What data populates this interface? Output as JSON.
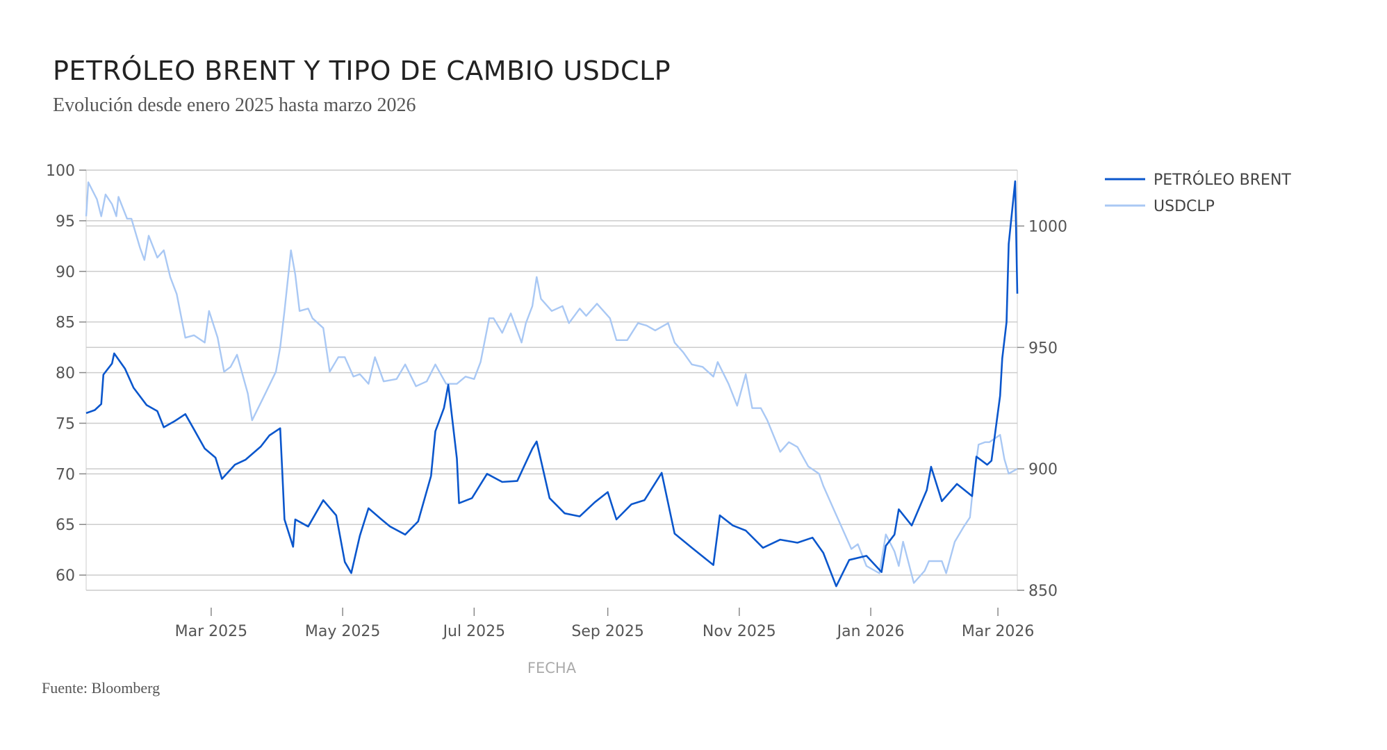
{
  "title": "PETRÓLEO BRENT Y TIPO DE CAMBIO USDCLP",
  "subtitle": "Evolución desde enero 2025 hasta marzo 2026",
  "source": "Fuente: Bloomberg",
  "colors": {
    "brent": "#0a56cc",
    "usdclp": "#a9c8f4",
    "grid": "#cccccc",
    "axis": "#888888"
  },
  "chart_data": {
    "type": "line",
    "xlabel": "FECHA",
    "x_ticks": [
      {
        "date": "2025-03-01",
        "label": "Mar 2025"
      },
      {
        "date": "2025-05-01",
        "label": "May 2025"
      },
      {
        "date": "2025-07-01",
        "label": "Jul 2025"
      },
      {
        "date": "2025-09-01",
        "label": "Sep 2025"
      },
      {
        "date": "2025-11-01",
        "label": "Nov 2025"
      },
      {
        "date": "2026-01-01",
        "label": "Jan 2026"
      },
      {
        "date": "2026-03-01",
        "label": "Mar 2026"
      }
    ],
    "xlim": [
      "2025-01-02",
      "2026-03-10"
    ],
    "y_left": {
      "ticks": [
        60,
        65,
        70,
        75,
        80,
        85,
        90,
        95,
        100
      ],
      "ylim": [
        58.5,
        100
      ]
    },
    "y_right": {
      "ticks": [
        850,
        900,
        950,
        1000
      ],
      "ylim": [
        850,
        1023
      ]
    },
    "grid": true,
    "legend_position": "right",
    "series": [
      {
        "name": "PETRÓLEO BRENT",
        "axis": "left",
        "points": [
          [
            "2025-01-02",
            76.0
          ],
          [
            "2025-01-06",
            76.3
          ],
          [
            "2025-01-09",
            76.9
          ],
          [
            "2025-01-10",
            79.8
          ],
          [
            "2025-01-14",
            80.9
          ],
          [
            "2025-01-15",
            81.9
          ],
          [
            "2025-01-20",
            80.4
          ],
          [
            "2025-01-24",
            78.5
          ],
          [
            "2025-01-30",
            76.8
          ],
          [
            "2025-02-04",
            76.2
          ],
          [
            "2025-02-07",
            74.6
          ],
          [
            "2025-02-12",
            75.2
          ],
          [
            "2025-02-17",
            75.9
          ],
          [
            "2025-02-21",
            74.4
          ],
          [
            "2025-02-26",
            72.5
          ],
          [
            "2025-03-03",
            71.6
          ],
          [
            "2025-03-06",
            69.5
          ],
          [
            "2025-03-12",
            70.9
          ],
          [
            "2025-03-17",
            71.4
          ],
          [
            "2025-03-24",
            72.7
          ],
          [
            "2025-03-28",
            73.8
          ],
          [
            "2025-04-02",
            74.5
          ],
          [
            "2025-04-03",
            70.1
          ],
          [
            "2025-04-04",
            65.5
          ],
          [
            "2025-04-08",
            62.8
          ],
          [
            "2025-04-09",
            65.5
          ],
          [
            "2025-04-15",
            64.8
          ],
          [
            "2025-04-22",
            67.4
          ],
          [
            "2025-04-28",
            65.9
          ],
          [
            "2025-05-02",
            61.3
          ],
          [
            "2025-05-05",
            60.2
          ],
          [
            "2025-05-09",
            63.9
          ],
          [
            "2025-05-13",
            66.6
          ],
          [
            "2025-05-19",
            65.5
          ],
          [
            "2025-05-23",
            64.8
          ],
          [
            "2025-05-30",
            64.0
          ],
          [
            "2025-06-05",
            65.3
          ],
          [
            "2025-06-11",
            69.8
          ],
          [
            "2025-06-13",
            74.2
          ],
          [
            "2025-06-17",
            76.5
          ],
          [
            "2025-06-19",
            78.8
          ],
          [
            "2025-06-23",
            71.5
          ],
          [
            "2025-06-24",
            67.1
          ],
          [
            "2025-06-30",
            67.6
          ],
          [
            "2025-07-07",
            70.0
          ],
          [
            "2025-07-14",
            69.2
          ],
          [
            "2025-07-21",
            69.3
          ],
          [
            "2025-07-28",
            72.5
          ],
          [
            "2025-07-30",
            73.2
          ],
          [
            "2025-08-05",
            67.6
          ],
          [
            "2025-08-12",
            66.1
          ],
          [
            "2025-08-19",
            65.8
          ],
          [
            "2025-08-26",
            67.2
          ],
          [
            "2025-09-01",
            68.2
          ],
          [
            "2025-09-05",
            65.5
          ],
          [
            "2025-09-12",
            67.0
          ],
          [
            "2025-09-18",
            67.4
          ],
          [
            "2025-09-26",
            70.1
          ],
          [
            "2025-10-02",
            64.1
          ],
          [
            "2025-10-10",
            62.7
          ],
          [
            "2025-10-20",
            61.0
          ],
          [
            "2025-10-23",
            65.9
          ],
          [
            "2025-10-29",
            64.9
          ],
          [
            "2025-11-04",
            64.4
          ],
          [
            "2025-11-12",
            62.7
          ],
          [
            "2025-11-20",
            63.5
          ],
          [
            "2025-11-28",
            63.2
          ],
          [
            "2025-12-05",
            63.7
          ],
          [
            "2025-12-10",
            62.2
          ],
          [
            "2025-12-16",
            58.9
          ],
          [
            "2025-12-22",
            61.5
          ],
          [
            "2025-12-30",
            61.9
          ],
          [
            "2026-01-06",
            60.3
          ],
          [
            "2026-01-08",
            62.9
          ],
          [
            "2026-01-12",
            64.0
          ],
          [
            "2026-01-14",
            66.5
          ],
          [
            "2026-01-20",
            64.9
          ],
          [
            "2026-01-27",
            68.4
          ],
          [
            "2026-01-29",
            70.7
          ],
          [
            "2026-02-03",
            67.3
          ],
          [
            "2026-02-10",
            69.0
          ],
          [
            "2026-02-17",
            67.8
          ],
          [
            "2026-02-19",
            71.7
          ],
          [
            "2026-02-24",
            70.9
          ],
          [
            "2026-02-26",
            71.3
          ],
          [
            "2026-03-02",
            77.7
          ],
          [
            "2026-03-03",
            81.4
          ],
          [
            "2026-03-05",
            85.0
          ],
          [
            "2026-03-06",
            92.7
          ],
          [
            "2026-03-09",
            98.9
          ],
          [
            "2026-03-10",
            87.8
          ]
        ]
      },
      {
        "name": "USDCLP",
        "axis": "right",
        "points": [
          [
            "2025-01-02",
            1004
          ],
          [
            "2025-01-03",
            1018
          ],
          [
            "2025-01-07",
            1011
          ],
          [
            "2025-01-09",
            1004
          ],
          [
            "2025-01-11",
            1013
          ],
          [
            "2025-01-14",
            1009
          ],
          [
            "2025-01-16",
            1004
          ],
          [
            "2025-01-17",
            1012
          ],
          [
            "2025-01-21",
            1003
          ],
          [
            "2025-01-23",
            1003
          ],
          [
            "2025-01-27",
            991
          ],
          [
            "2025-01-29",
            986
          ],
          [
            "2025-01-31",
            996
          ],
          [
            "2025-02-04",
            987
          ],
          [
            "2025-02-07",
            990
          ],
          [
            "2025-02-10",
            979
          ],
          [
            "2025-02-13",
            972
          ],
          [
            "2025-02-17",
            954
          ],
          [
            "2025-02-21",
            955
          ],
          [
            "2025-02-26",
            952
          ],
          [
            "2025-02-28",
            965
          ],
          [
            "2025-03-04",
            954
          ],
          [
            "2025-03-07",
            940
          ],
          [
            "2025-03-10",
            942
          ],
          [
            "2025-03-13",
            947
          ],
          [
            "2025-03-18",
            931
          ],
          [
            "2025-03-20",
            920
          ],
          [
            "2025-03-25",
            929
          ],
          [
            "2025-03-31",
            940
          ],
          [
            "2025-04-02",
            950
          ],
          [
            "2025-04-04",
            965
          ],
          [
            "2025-04-07",
            990
          ],
          [
            "2025-04-09",
            980
          ],
          [
            "2025-04-11",
            965
          ],
          [
            "2025-04-15",
            966
          ],
          [
            "2025-04-17",
            962
          ],
          [
            "2025-04-22",
            958
          ],
          [
            "2025-04-25",
            940
          ],
          [
            "2025-04-29",
            946
          ],
          [
            "2025-05-02",
            946
          ],
          [
            "2025-05-06",
            938
          ],
          [
            "2025-05-09",
            939
          ],
          [
            "2025-05-13",
            935
          ],
          [
            "2025-05-16",
            946
          ],
          [
            "2025-05-20",
            936
          ],
          [
            "2025-05-26",
            937
          ],
          [
            "2025-05-30",
            943
          ],
          [
            "2025-06-04",
            934
          ],
          [
            "2025-06-09",
            936
          ],
          [
            "2025-06-13",
            943
          ],
          [
            "2025-06-18",
            935
          ],
          [
            "2025-06-23",
            935
          ],
          [
            "2025-06-27",
            938
          ],
          [
            "2025-07-01",
            937
          ],
          [
            "2025-07-04",
            944
          ],
          [
            "2025-07-08",
            962
          ],
          [
            "2025-07-10",
            962
          ],
          [
            "2025-07-14",
            956
          ],
          [
            "2025-07-18",
            964
          ],
          [
            "2025-07-23",
            952
          ],
          [
            "2025-07-25",
            960
          ],
          [
            "2025-07-28",
            967
          ],
          [
            "2025-07-30",
            979
          ],
          [
            "2025-08-01",
            970
          ],
          [
            "2025-08-06",
            965
          ],
          [
            "2025-08-11",
            967
          ],
          [
            "2025-08-14",
            960
          ],
          [
            "2025-08-19",
            966
          ],
          [
            "2025-08-22",
            963
          ],
          [
            "2025-08-27",
            968
          ],
          [
            "2025-09-02",
            962
          ],
          [
            "2025-09-05",
            953
          ],
          [
            "2025-09-10",
            953
          ],
          [
            "2025-09-15",
            960
          ],
          [
            "2025-09-19",
            959
          ],
          [
            "2025-09-23",
            957
          ],
          [
            "2025-09-29",
            960
          ],
          [
            "2025-10-02",
            952
          ],
          [
            "2025-10-06",
            948
          ],
          [
            "2025-10-10",
            943
          ],
          [
            "2025-10-15",
            942
          ],
          [
            "2025-10-20",
            938
          ],
          [
            "2025-10-22",
            944
          ],
          [
            "2025-10-27",
            935
          ],
          [
            "2025-10-31",
            926
          ],
          [
            "2025-11-04",
            939
          ],
          [
            "2025-11-07",
            925
          ],
          [
            "2025-11-11",
            925
          ],
          [
            "2025-11-14",
            920
          ],
          [
            "2025-11-20",
            907
          ],
          [
            "2025-11-24",
            911
          ],
          [
            "2025-11-28",
            909
          ],
          [
            "2025-12-03",
            901
          ],
          [
            "2025-12-08",
            898
          ],
          [
            "2025-12-10",
            893
          ],
          [
            "2025-12-15",
            883
          ],
          [
            "2025-12-19",
            875
          ],
          [
            "2025-12-23",
            867
          ],
          [
            "2025-12-26",
            869
          ],
          [
            "2025-12-30",
            860
          ],
          [
            "2026-01-05",
            857
          ],
          [
            "2026-01-08",
            873
          ],
          [
            "2026-01-12",
            866
          ],
          [
            "2026-01-14",
            860
          ],
          [
            "2026-01-16",
            870
          ],
          [
            "2026-01-21",
            853
          ],
          [
            "2026-01-26",
            858
          ],
          [
            "2026-01-28",
            862
          ],
          [
            "2026-02-03",
            862
          ],
          [
            "2026-02-05",
            857
          ],
          [
            "2026-02-09",
            870
          ],
          [
            "2026-02-13",
            876
          ],
          [
            "2026-02-16",
            880
          ],
          [
            "2026-02-18",
            897
          ],
          [
            "2026-02-20",
            910
          ],
          [
            "2026-02-23",
            911
          ],
          [
            "2026-02-25",
            911
          ],
          [
            "2026-03-02",
            914
          ],
          [
            "2026-03-04",
            904
          ],
          [
            "2026-03-06",
            898
          ],
          [
            "2026-03-10",
            900
          ]
        ]
      }
    ]
  }
}
